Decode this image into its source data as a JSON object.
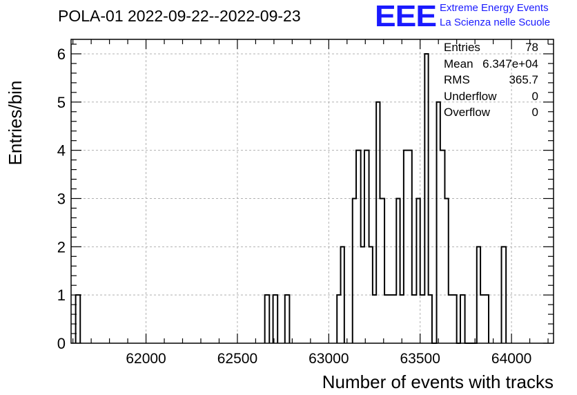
{
  "header": {
    "title": "POLA-01 2022-09-22--2022-09-23",
    "logo_letters": "EEE",
    "logo_line1": "Extreme Energy Events",
    "logo_line2": "La Scienza nelle Scuole"
  },
  "stats_box": {
    "rows": [
      {
        "label": "Entries",
        "value": "78"
      },
      {
        "label": "Mean",
        "value": "6.347e+04"
      },
      {
        "label": "RMS",
        "value": "365.7"
      },
      {
        "label": "Underflow",
        "value": "0"
      },
      {
        "label": "Overflow",
        "value": "0"
      }
    ]
  },
  "chart_data": {
    "type": "histogram",
    "title": "POLA-01 2022-09-22--2022-09-23",
    "xlabel": "Number of events with tracks",
    "ylabel": "Entries/bin",
    "xlim": [
      61590,
      64230
    ],
    "ylim": [
      0,
      6.3
    ],
    "xticks": [
      62000,
      62500,
      63000,
      63500,
      64000
    ],
    "xtick_labels": [
      "62000",
      "62500",
      "63000",
      "63500",
      "64000"
    ],
    "yticks": [
      0,
      1,
      2,
      3,
      4,
      5,
      6
    ],
    "ytick_labels": [
      "0",
      "1",
      "2",
      "3",
      "4",
      "5",
      "6"
    ],
    "grid": true,
    "line_color": "#000000",
    "bins": [
      {
        "x0": 61615,
        "x1": 61640,
        "count": 1
      },
      {
        "x0": 62650,
        "x1": 62675,
        "count": 1
      },
      {
        "x0": 62695,
        "x1": 62720,
        "count": 1
      },
      {
        "x0": 62760,
        "x1": 62785,
        "count": 1
      },
      {
        "x0": 63045,
        "x1": 63065,
        "count": 1
      },
      {
        "x0": 63065,
        "x1": 63085,
        "count": 2
      },
      {
        "x0": 63130,
        "x1": 63150,
        "count": 3
      },
      {
        "x0": 63150,
        "x1": 63175,
        "count": 4
      },
      {
        "x0": 63175,
        "x1": 63195,
        "count": 2
      },
      {
        "x0": 63195,
        "x1": 63220,
        "count": 4
      },
      {
        "x0": 63220,
        "x1": 63240,
        "count": 2
      },
      {
        "x0": 63240,
        "x1": 63260,
        "count": 1
      },
      {
        "x0": 63260,
        "x1": 63280,
        "count": 5
      },
      {
        "x0": 63280,
        "x1": 63305,
        "count": 3
      },
      {
        "x0": 63305,
        "x1": 63350,
        "count": 1
      },
      {
        "x0": 63350,
        "x1": 63370,
        "count": 1
      },
      {
        "x0": 63370,
        "x1": 63390,
        "count": 3
      },
      {
        "x0": 63390,
        "x1": 63410,
        "count": 1
      },
      {
        "x0": 63410,
        "x1": 63435,
        "count": 4
      },
      {
        "x0": 63435,
        "x1": 63455,
        "count": 4
      },
      {
        "x0": 63455,
        "x1": 63480,
        "count": 1
      },
      {
        "x0": 63480,
        "x1": 63500,
        "count": 3
      },
      {
        "x0": 63500,
        "x1": 63525,
        "count": 1
      },
      {
        "x0": 63525,
        "x1": 63545,
        "count": 6
      },
      {
        "x0": 63545,
        "x1": 63565,
        "count": 1
      },
      {
        "x0": 63565,
        "x1": 63590,
        "count": 0
      },
      {
        "x0": 63590,
        "x1": 63610,
        "count": 5
      },
      {
        "x0": 63610,
        "x1": 63635,
        "count": 4
      },
      {
        "x0": 63635,
        "x1": 63655,
        "count": 3
      },
      {
        "x0": 63655,
        "x1": 63680,
        "count": 1
      },
      {
        "x0": 63680,
        "x1": 63700,
        "count": 1
      },
      {
        "x0": 63700,
        "x1": 63720,
        "count": 0
      },
      {
        "x0": 63720,
        "x1": 63745,
        "count": 1
      },
      {
        "x0": 63745,
        "x1": 63765,
        "count": 0
      },
      {
        "x0": 63765,
        "x1": 63790,
        "count": 0
      },
      {
        "x0": 63790,
        "x1": 63810,
        "count": 0
      },
      {
        "x0": 63810,
        "x1": 63830,
        "count": 2
      },
      {
        "x0": 63830,
        "x1": 63855,
        "count": 1
      },
      {
        "x0": 63855,
        "x1": 63875,
        "count": 1
      },
      {
        "x0": 63945,
        "x1": 63970,
        "count": 2
      }
    ]
  }
}
